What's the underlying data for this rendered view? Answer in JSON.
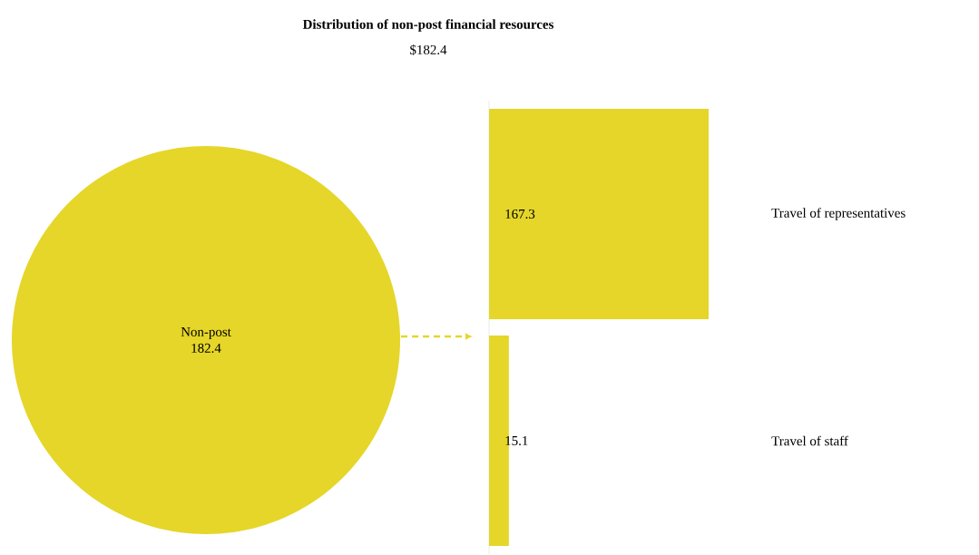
{
  "chart_data": [
    {
      "type": "pie",
      "title": "Distribution of non-post financial resources",
      "subtitle": "$182.4",
      "categories": [
        "Non-post"
      ],
      "values": [
        182.4
      ],
      "colors": [
        "#e5d629"
      ],
      "data_labels": true
    },
    {
      "type": "bar",
      "orientation": "horizontal",
      "categories": [
        "Travel of representatives",
        "Travel of staff"
      ],
      "values": [
        167.3,
        15.1
      ],
      "color": "#e5d629",
      "data_labels": true
    }
  ]
}
